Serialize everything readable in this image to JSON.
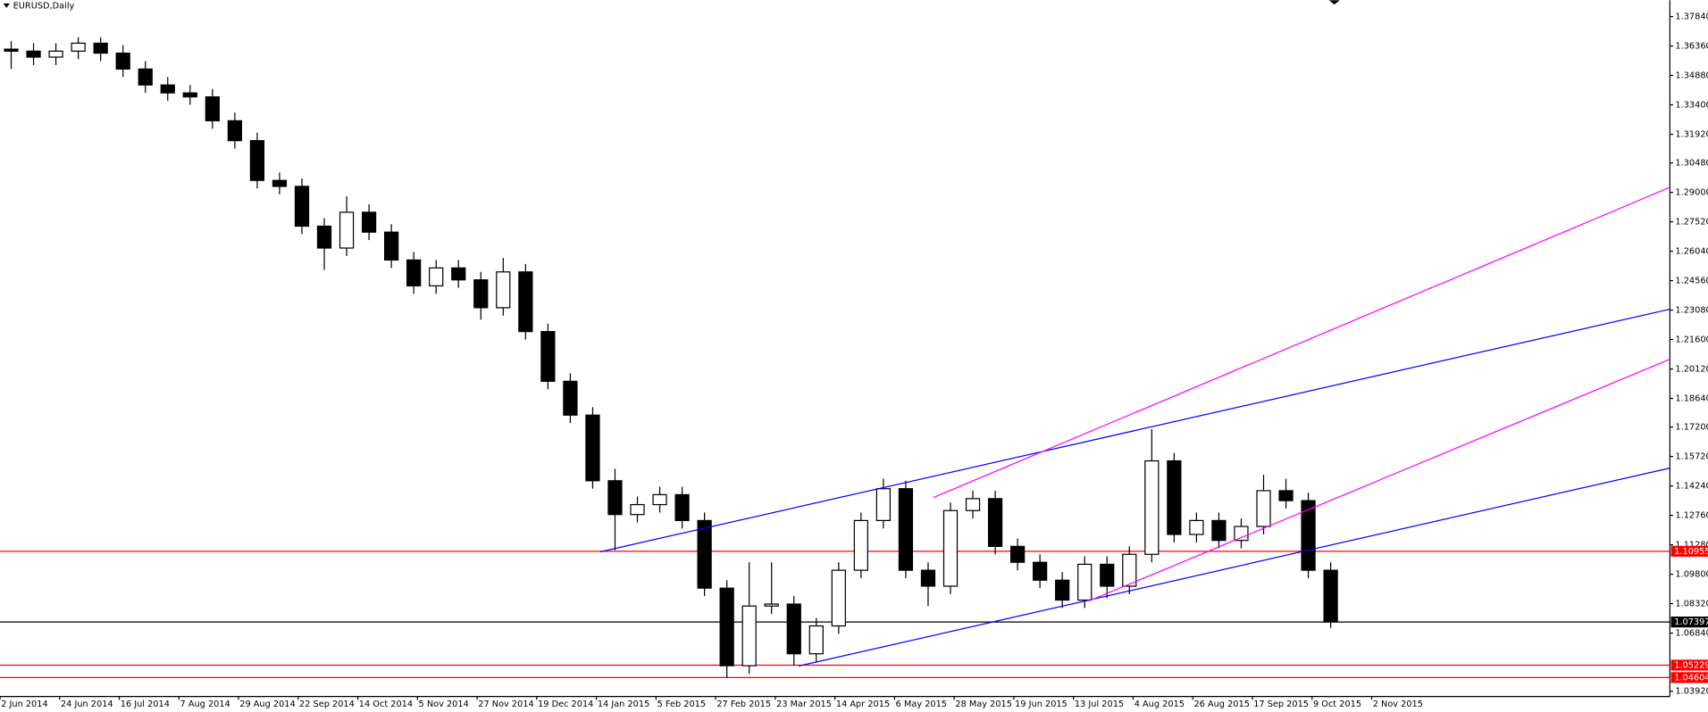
{
  "chart_data": {
    "type": "candlestick",
    "title": "EURUSD,Daily",
    "x": [
      3,
      9,
      15,
      21,
      27,
      33,
      39,
      45,
      51,
      57,
      63,
      69,
      75,
      81,
      87,
      93,
      99,
      105,
      111,
      117,
      123,
      129,
      135,
      141,
      147,
      153,
      159,
      165,
      171,
      177,
      183,
      189,
      195,
      201,
      207,
      213,
      219,
      225,
      231,
      237,
      243,
      249,
      255,
      261,
      267,
      273,
      279,
      285,
      291,
      297,
      303,
      309,
      315,
      321,
      327,
      333,
      339,
      345,
      351,
      357
    ],
    "open": [
      1.362,
      1.361,
      1.358,
      1.361,
      1.365,
      1.36,
      1.352,
      1.344,
      1.34,
      1.338,
      1.326,
      1.316,
      1.296,
      1.293,
      1.273,
      1.262,
      1.28,
      1.27,
      1.256,
      1.243,
      1.252,
      1.246,
      1.232,
      1.25,
      1.22,
      1.195,
      1.178,
      1.145,
      1.128,
      1.133,
      1.138,
      1.125,
      1.091,
      1.052,
      1.082,
      1.083,
      1.058,
      1.072,
      1.1,
      1.125,
      1.141,
      1.1,
      1.092,
      1.13,
      1.136,
      1.112,
      1.104,
      1.095,
      1.085,
      1.103,
      1.092,
      1.108,
      1.155,
      1.118,
      1.125,
      1.115,
      1.122,
      1.14,
      1.135,
      1.1
    ],
    "high": [
      1.366,
      1.365,
      1.365,
      1.368,
      1.368,
      1.364,
      1.356,
      1.348,
      1.344,
      1.342,
      1.33,
      1.32,
      1.3,
      1.297,
      1.277,
      1.288,
      1.284,
      1.274,
      1.26,
      1.256,
      1.256,
      1.25,
      1.257,
      1.254,
      1.224,
      1.199,
      1.182,
      1.151,
      1.137,
      1.142,
      1.142,
      1.129,
      1.095,
      1.104,
      1.104,
      1.087,
      1.076,
      1.104,
      1.129,
      1.146,
      1.145,
      1.104,
      1.134,
      1.14,
      1.14,
      1.116,
      1.108,
      1.099,
      1.107,
      1.107,
      1.112,
      1.171,
      1.159,
      1.129,
      1.129,
      1.126,
      1.148,
      1.146,
      1.139,
      1.104
    ],
    "low": [
      1.352,
      1.354,
      1.354,
      1.357,
      1.356,
      1.348,
      1.34,
      1.336,
      1.334,
      1.322,
      1.312,
      1.292,
      1.289,
      1.269,
      1.251,
      1.258,
      1.266,
      1.252,
      1.239,
      1.239,
      1.242,
      1.226,
      1.228,
      1.216,
      1.191,
      1.174,
      1.141,
      1.11,
      1.124,
      1.129,
      1.121,
      1.087,
      1.046,
      1.048,
      1.078,
      1.052,
      1.054,
      1.068,
      1.096,
      1.121,
      1.096,
      1.082,
      1.088,
      1.126,
      1.108,
      1.1,
      1.091,
      1.081,
      1.081,
      1.086,
      1.088,
      1.104,
      1.114,
      1.114,
      1.111,
      1.111,
      1.118,
      1.131,
      1.096,
      1.071
    ],
    "close": [
      1.361,
      1.358,
      1.361,
      1.365,
      1.36,
      1.352,
      1.344,
      1.34,
      1.338,
      1.326,
      1.316,
      1.296,
      1.293,
      1.273,
      1.262,
      1.28,
      1.27,
      1.256,
      1.243,
      1.252,
      1.246,
      1.232,
      1.25,
      1.22,
      1.195,
      1.178,
      1.145,
      1.128,
      1.133,
      1.138,
      1.125,
      1.091,
      1.052,
      1.082,
      1.083,
      1.058,
      1.072,
      1.1,
      1.125,
      1.141,
      1.1,
      1.092,
      1.13,
      1.136,
      1.112,
      1.104,
      1.095,
      1.085,
      1.103,
      1.092,
      1.108,
      1.155,
      1.118,
      1.125,
      1.115,
      1.122,
      1.14,
      1.135,
      1.1,
      1.074
    ],
    "xlim": [
      0,
      448
    ],
    "xticks": [
      {
        "value": 0,
        "label": "2 Jun 2014"
      },
      {
        "value": 16,
        "label": "24 Jun 2014"
      },
      {
        "value": 32,
        "label": "16 Jul 2014"
      },
      {
        "value": 48,
        "label": "7 Aug 2014"
      },
      {
        "value": 64,
        "label": "29 Aug 2014"
      },
      {
        "value": 80,
        "label": "22 Sep 2014"
      },
      {
        "value": 96,
        "label": "14 Oct 2014"
      },
      {
        "value": 112,
        "label": "5 Nov 2014"
      },
      {
        "value": 128,
        "label": "27 Nov 2014"
      },
      {
        "value": 144,
        "label": "19 Dec 2014"
      },
      {
        "value": 160,
        "label": "14 Jan 2015"
      },
      {
        "value": 176,
        "label": "5 Feb 2015"
      },
      {
        "value": 192,
        "label": "27 Feb 2015"
      },
      {
        "value": 208,
        "label": "23 Mar 2015"
      },
      {
        "value": 224,
        "label": "14 Apr 2015"
      },
      {
        "value": 240,
        "label": "6 May 2015"
      },
      {
        "value": 256,
        "label": "28 May 2015"
      },
      {
        "value": 272,
        "label": "19 Jun 2015"
      },
      {
        "value": 288,
        "label": "13 Jul 2015"
      },
      {
        "value": 304,
        "label": "4 Aug 2015"
      },
      {
        "value": 320,
        "label": "26 Aug 2015"
      },
      {
        "value": 336,
        "label": "17 Sep 2015"
      },
      {
        "value": 352,
        "label": "9 Oct 2015"
      },
      {
        "value": 368,
        "label": "2 Nov 2015"
      }
    ],
    "ylim": [
      1.0365,
      1.3866
    ],
    "yticks": [
      {
        "value": 1.3784,
        "label": "1.37840"
      },
      {
        "value": 1.3636,
        "label": "1.36360"
      },
      {
        "value": 1.3488,
        "label": "1.34880"
      },
      {
        "value": 1.334,
        "label": "1.33400"
      },
      {
        "value": 1.3192,
        "label": "1.31920"
      },
      {
        "value": 1.3048,
        "label": "1.30480"
      },
      {
        "value": 1.29,
        "label": "1.29000"
      },
      {
        "value": 1.2752,
        "label": "1.27520"
      },
      {
        "value": 1.2604,
        "label": "1.26040"
      },
      {
        "value": 1.2456,
        "label": "1.24560"
      },
      {
        "value": 1.2308,
        "label": "1.23080"
      },
      {
        "value": 1.216,
        "label": "1.21600"
      },
      {
        "value": 1.2012,
        "label": "1.20120"
      },
      {
        "value": 1.1864,
        "label": "1.18640"
      },
      {
        "value": 1.172,
        "label": "1.17200"
      },
      {
        "value": 1.1572,
        "label": "1.15720"
      },
      {
        "value": 1.1424,
        "label": "1.14240"
      },
      {
        "value": 1.1276,
        "label": "1.12760"
      },
      {
        "value": 1.1128,
        "label": "1.11280"
      },
      {
        "value": 1.098,
        "label": "1.09800"
      },
      {
        "value": 1.0832,
        "label": "1.08320"
      },
      {
        "value": 1.0684,
        "label": "1.06840"
      },
      {
        "value": 1.0392,
        "label": "1.03920"
      }
    ],
    "levels": [
      {
        "value": 1.10955,
        "color": "#ff0000"
      },
      {
        "value": 1.07397,
        "color": "#000000"
      },
      {
        "value": 1.05229,
        "color": "#ff0000"
      },
      {
        "value": 1.04604,
        "color": "#ff0000"
      }
    ],
    "up_color": "#ffffff",
    "down_color": "#000000",
    "outline_color": "#000000"
  }
}
